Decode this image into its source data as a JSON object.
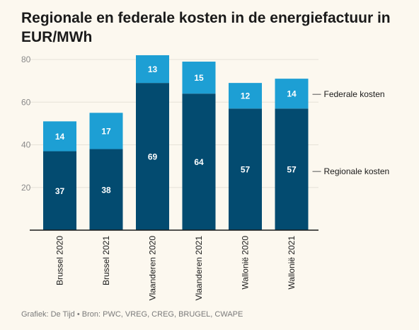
{
  "title": "Regionale en federale kosten in de energiefactuur in EUR/MWh",
  "source": "Grafiek: De Tijd • Bron: PWC, VREG, CREG, BRUGEL, CWAPE",
  "colors": {
    "regionale": "#034b70",
    "federale": "#1d9fd4",
    "axis": "#1a1a1a",
    "grid": "#e6e2d8"
  },
  "chart_data": {
    "type": "bar",
    "stacked": true,
    "categories": [
      "Brussel 2020",
      "Brussel 2021",
      "Vlaanderen 2020",
      "Vlaanderen 2021",
      "Wallonië 2020",
      "Wallonië 2021"
    ],
    "series": [
      {
        "name": "Regionale kosten",
        "values": [
          37,
          38,
          69,
          64,
          57,
          57
        ]
      },
      {
        "name": "Federale kosten",
        "values": [
          14,
          17,
          13,
          15,
          12,
          14
        ]
      }
    ],
    "yticks": [
      20,
      40,
      60,
      80
    ],
    "ylim": [
      0,
      80
    ],
    "grid": true,
    "legend": "right, direct labels"
  }
}
